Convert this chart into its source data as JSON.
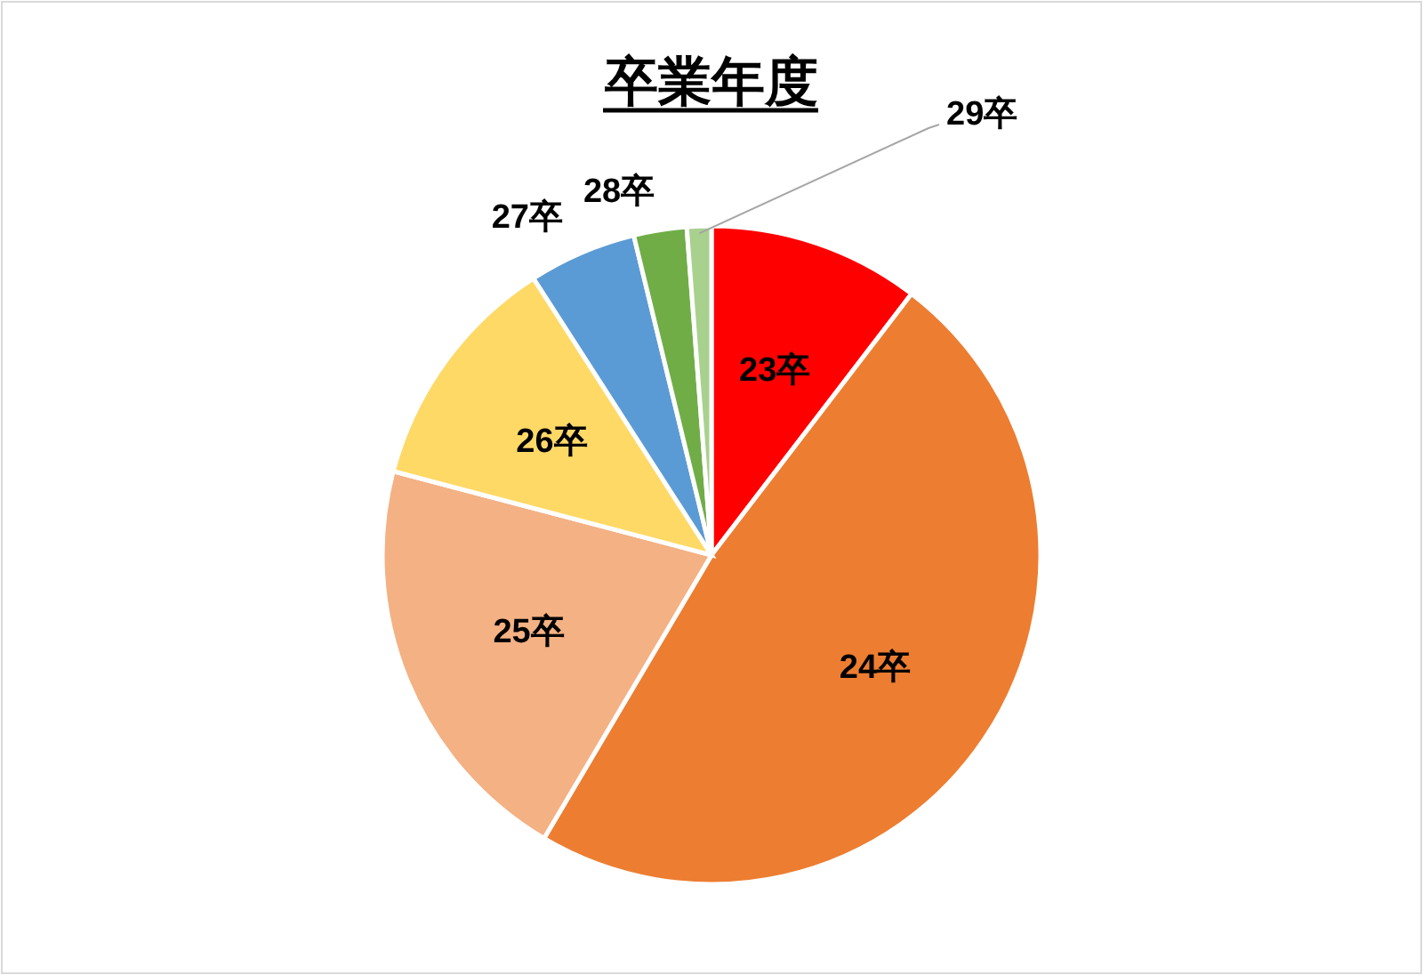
{
  "chart_data": {
    "type": "pie",
    "title": "卒業年度",
    "categories": [
      "23卒",
      "24卒",
      "25卒",
      "26卒",
      "27卒",
      "28卒",
      "29卒"
    ],
    "values": [
      10.4,
      48.1,
      20.6,
      11.8,
      5.3,
      2.6,
      1.2
    ],
    "colors": [
      "#ff0000",
      "#ed7d31",
      "#f4b183",
      "#ffd966",
      "#5b9bd5",
      "#70ad47",
      "#a9d18e"
    ],
    "legend": false
  }
}
